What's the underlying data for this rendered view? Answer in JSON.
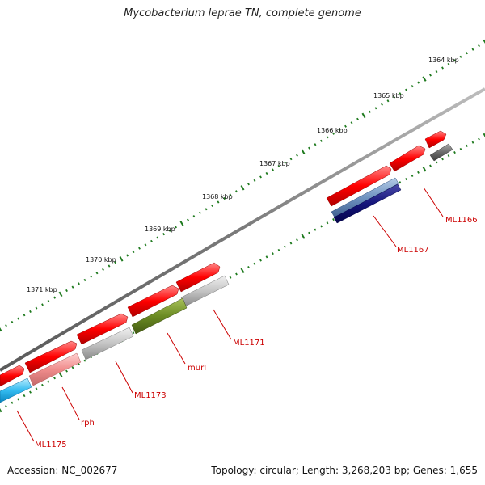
{
  "title": "Mycobacterium leprae TN, complete genome",
  "footer": {
    "accession": "Accession: NC_002677",
    "summary": "Topology: circular; Length: 3,268,203 bp; Genes: 1,655"
  },
  "colors": {
    "backbone": "#8a8a8a",
    "ticks": "#1e7a1e",
    "gene": "#ee0000",
    "label": "#cc0000"
  },
  "ticks": [
    {
      "label": "1364 kbp"
    },
    {
      "label": "1365 kbp"
    },
    {
      "label": "1366 kbp"
    },
    {
      "label": "1367 kbp"
    },
    {
      "label": "1368 kbp"
    },
    {
      "label": "1369 kbp"
    },
    {
      "label": "1370 kbp"
    },
    {
      "label": "1371 kbp"
    }
  ],
  "gene_labels": [
    "ML1166",
    "ML1167",
    "ML1171",
    "murI",
    "ML1173",
    "rph",
    "ML1175"
  ]
}
